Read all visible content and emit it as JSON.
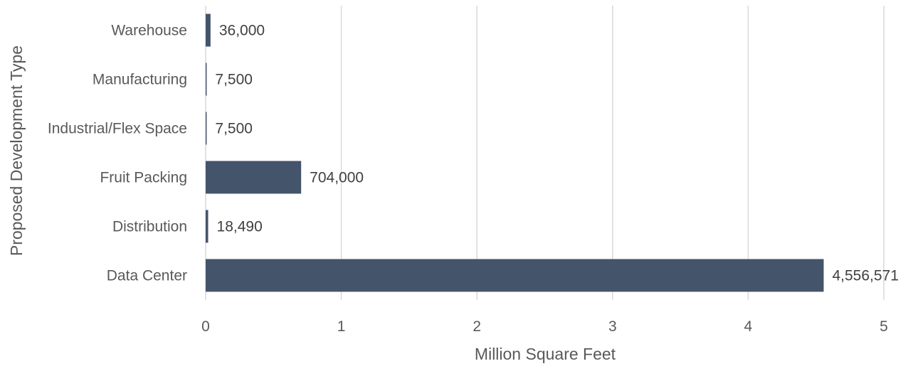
{
  "chart_data": {
    "type": "bar",
    "orientation": "horizontal",
    "categories": [
      "Warehouse",
      "Manufacturing",
      "Industrial/Flex Space",
      "Fruit Packing",
      "Distribution",
      "Data Center"
    ],
    "values": [
      36000,
      7500,
      7500,
      704000,
      18490,
      4556571
    ],
    "value_labels": [
      "36,000",
      "7,500",
      "7,500",
      "704,000",
      "18,490",
      "4,556,571"
    ],
    "xlabel": "Million Square Feet",
    "ylabel": "Proposed Development Type",
    "xlim": [
      0,
      5
    ],
    "x_ticks": [
      "0",
      "1",
      "2",
      "3",
      "4",
      "5"
    ],
    "x_unit_divisor": 1000000,
    "grid": "vertical",
    "bar_color": "#44546a",
    "grid_color": "#d9d9d9"
  }
}
